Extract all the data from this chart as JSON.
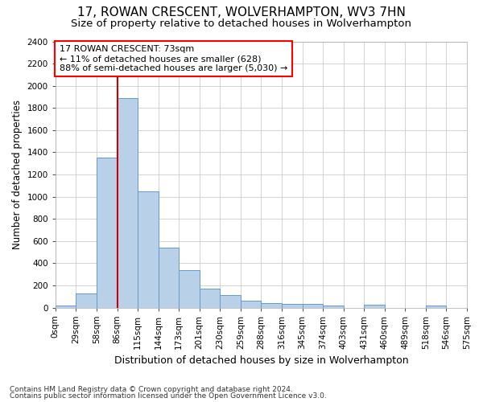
{
  "title_line1": "17, ROWAN CRESCENT, WOLVERHAMPTON, WV3 7HN",
  "title_line2": "Size of property relative to detached houses in Wolverhampton",
  "xlabel": "Distribution of detached houses by size in Wolverhampton",
  "ylabel": "Number of detached properties",
  "footnote1": "Contains HM Land Registry data © Crown copyright and database right 2024.",
  "footnote2": "Contains public sector information licensed under the Open Government Licence v3.0.",
  "annotation_line1": "17 ROWAN CRESCENT: 73sqm",
  "annotation_line2": "← 11% of detached houses are smaller (628)",
  "annotation_line3": "88% of semi-detached houses are larger (5,030) →",
  "bar_values": [
    20,
    125,
    1350,
    1890,
    1045,
    540,
    340,
    170,
    110,
    65,
    40,
    30,
    30,
    15,
    0,
    25,
    0,
    0,
    20,
    0
  ],
  "bin_labels": [
    "0sqm",
    "29sqm",
    "58sqm",
    "86sqm",
    "115sqm",
    "144sqm",
    "173sqm",
    "201sqm",
    "230sqm",
    "259sqm",
    "288sqm",
    "316sqm",
    "345sqm",
    "374sqm",
    "403sqm",
    "431sqm",
    "460sqm",
    "489sqm",
    "518sqm",
    "546sqm",
    "575sqm"
  ],
  "bar_color": "#b8d0e8",
  "bar_edge_color": "#6699cc",
  "vline_color": "#cc0000",
  "vline_x": 3.0,
  "ylim": [
    0,
    2400
  ],
  "yticks": [
    0,
    200,
    400,
    600,
    800,
    1000,
    1200,
    1400,
    1600,
    1800,
    2000,
    2200,
    2400
  ],
  "bg_color": "#ffffff",
  "plot_bg_color": "#ffffff",
  "grid_color": "#cccccc",
  "title1_fontsize": 11,
  "title2_fontsize": 9.5,
  "xlabel_fontsize": 9,
  "ylabel_fontsize": 8.5,
  "annotation_fontsize": 8,
  "tick_fontsize": 7.5,
  "footnote_fontsize": 6.5
}
